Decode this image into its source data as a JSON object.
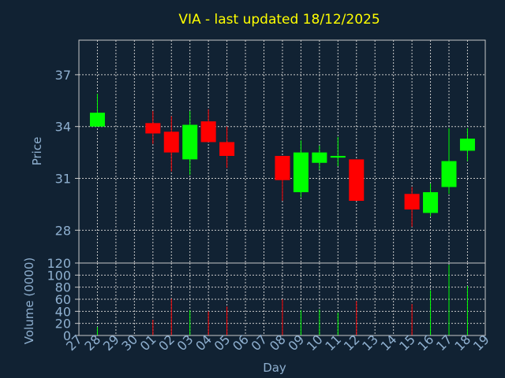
{
  "chart_data": {
    "type": "candlestick",
    "title": "VIA - last updated 18/12/2025",
    "xlabel": "Day",
    "price_ylabel": "Price",
    "volume_ylabel": "Volume (0000)",
    "x_tick_labels": [
      "27",
      "28",
      "29",
      "30",
      "01",
      "02",
      "03",
      "04",
      "05",
      "06",
      "07",
      "08",
      "09",
      "10",
      "11",
      "12",
      "13",
      "14",
      "15",
      "16",
      "17",
      "18",
      "19"
    ],
    "price_yticks": [
      28,
      31,
      34,
      37
    ],
    "price_ylim": [
      26.1,
      39.0
    ],
    "volume_yticks": [
      0,
      20,
      40,
      60,
      80,
      100,
      120
    ],
    "volume_ylim": [
      0,
      120
    ],
    "grid": true,
    "up_color": "#00ff00",
    "down_color": "#ff0000",
    "background_color": "#112233",
    "title_color": "#ffff00",
    "candles": [
      {
        "day": "28",
        "open": 34.0,
        "high": 35.9,
        "low": 34.0,
        "close": 34.8,
        "volume": 14
      },
      {
        "day": "01",
        "open": 34.2,
        "high": 34.9,
        "low": 33.0,
        "close": 33.6,
        "volume": 26
      },
      {
        "day": "02",
        "open": 33.7,
        "high": 34.6,
        "low": 31.4,
        "close": 32.5,
        "volume": 61
      },
      {
        "day": "03",
        "open": 32.1,
        "high": 34.9,
        "low": 31.2,
        "close": 34.1,
        "volume": 42
      },
      {
        "day": "04",
        "open": 34.3,
        "high": 35.0,
        "low": 33.1,
        "close": 33.1,
        "volume": 40
      },
      {
        "day": "05",
        "open": 33.1,
        "high": 34.0,
        "low": 31.6,
        "close": 32.3,
        "volume": 48
      },
      {
        "day": "08",
        "open": 32.3,
        "high": 32.3,
        "low": 29.7,
        "close": 30.9,
        "volume": 60
      },
      {
        "day": "09",
        "open": 30.2,
        "high": 33.2,
        "low": 29.9,
        "close": 32.5,
        "volume": 42
      },
      {
        "day": "10",
        "open": 31.9,
        "high": 32.9,
        "low": 31.5,
        "close": 32.5,
        "volume": 43
      },
      {
        "day": "11",
        "open": 32.2,
        "high": 33.4,
        "low": 31.7,
        "close": 32.3,
        "volume": 38
      },
      {
        "day": "12",
        "open": 32.1,
        "high": 32.1,
        "low": 29.7,
        "close": 29.7,
        "volume": 57
      },
      {
        "day": "15",
        "open": 30.1,
        "high": 30.5,
        "low": 28.2,
        "close": 29.2,
        "volume": 52
      },
      {
        "day": "16",
        "open": 29.0,
        "high": 30.7,
        "low": 28.8,
        "close": 30.2,
        "volume": 75
      },
      {
        "day": "17",
        "open": 30.5,
        "high": 33.9,
        "low": 30.1,
        "close": 32.0,
        "volume": 117
      },
      {
        "day": "18",
        "open": 32.6,
        "high": 33.9,
        "low": 32.0,
        "close": 33.3,
        "volume": 82
      }
    ]
  }
}
